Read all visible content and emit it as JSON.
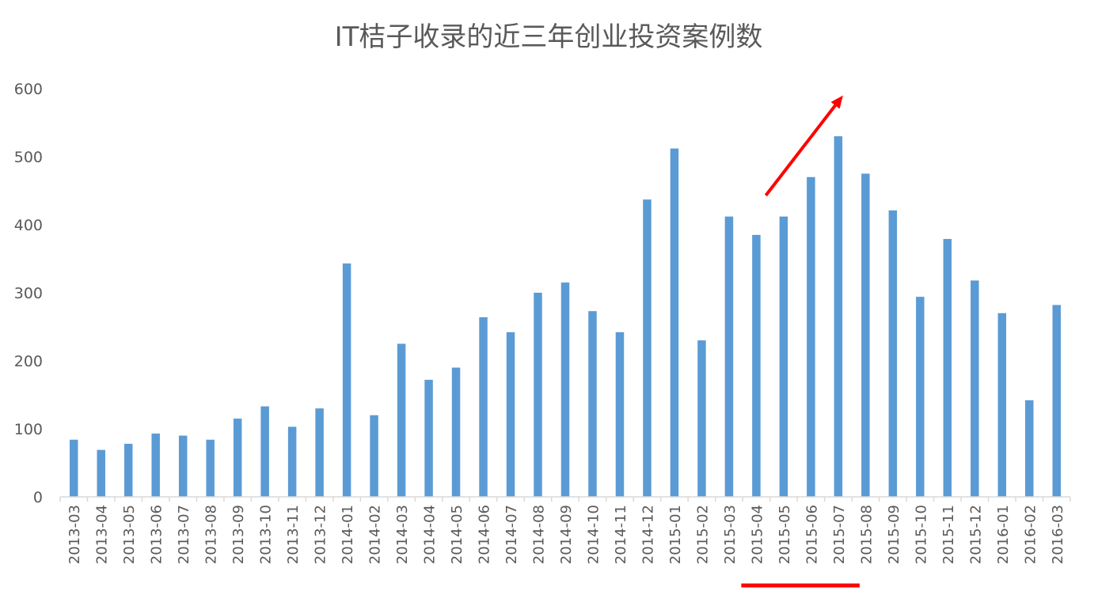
{
  "chart_data": {
    "type": "bar",
    "title": "IT桔子收录的近三年创业投资案例数",
    "xlabel": "",
    "ylabel": "",
    "ylim": [
      0,
      600
    ],
    "yticks": [
      0,
      100,
      200,
      300,
      400,
      500,
      600
    ],
    "grid": false,
    "legend": "none",
    "bar_color": "#5B9BD5",
    "annotation_color": "#FF0000",
    "categories": [
      "2013-03",
      "2013-04",
      "2013-05",
      "2013-06",
      "2013-07",
      "2013-08",
      "2013-09",
      "2013-10",
      "2013-11",
      "2013-12",
      "2014-01",
      "2014-02",
      "2014-03",
      "2014-04",
      "2014-05",
      "2014-06",
      "2014-07",
      "2014-08",
      "2014-09",
      "2014-10",
      "2014-11",
      "2014-12",
      "2015-01",
      "2015-02",
      "2015-03",
      "2015-04",
      "2015-05",
      "2015-06",
      "2015-07",
      "2015-08",
      "2015-09",
      "2015-10",
      "2015-11",
      "2015-12",
      "2016-01",
      "2016-02",
      "2016-03"
    ],
    "values": [
      84,
      69,
      78,
      93,
      90,
      84,
      115,
      133,
      103,
      130,
      343,
      120,
      225,
      172,
      190,
      264,
      242,
      300,
      315,
      273,
      242,
      437,
      512,
      230,
      412,
      385,
      412,
      470,
      530,
      475,
      421,
      294,
      379,
      318,
      270,
      142,
      282
    ],
    "annotations": [
      {
        "type": "arrow",
        "from_category": "2015-04",
        "to_category": "2015-07",
        "from_value": 443,
        "to_value": 590
      },
      {
        "type": "underline",
        "from_category": "2015-04",
        "to_category": "2015-07"
      }
    ]
  }
}
